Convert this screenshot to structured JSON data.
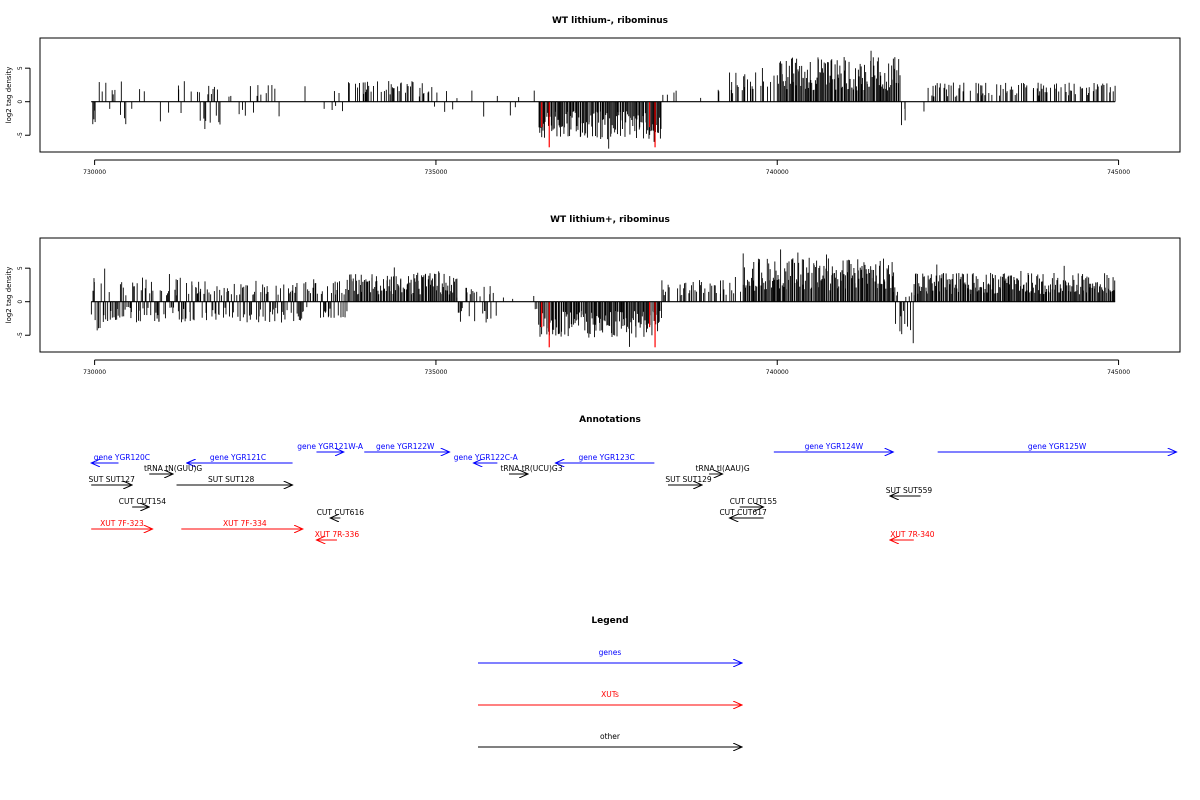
{
  "chart_data": [
    {
      "type": "bar",
      "title": "WT lithium-, ribominus",
      "ylabel": "log2 tag density",
      "xlabel": "",
      "xlim": [
        729200,
        745900
      ],
      "ylim": [
        -7.5,
        9.5
      ],
      "xticks": [
        730000,
        735000,
        740000,
        745000
      ],
      "yticks": [
        -5,
        0,
        5
      ],
      "grid": false,
      "bar_color": "#000000",
      "highlight_color": "#ff0000",
      "highlight_bars": [
        {
          "x": 736660,
          "y": -6.8
        },
        {
          "x": 738210,
          "y": -6.8
        },
        {
          "x": 736550,
          "y": -3.8
        },
        {
          "x": 738130,
          "y": -3.8
        }
      ],
      "profile": [
        {
          "from": 729950,
          "to": 730550,
          "mode": "mixed",
          "plus": 2.6,
          "minus": -2.8,
          "density": 0.35
        },
        {
          "from": 730550,
          "to": 731200,
          "mode": "mixed",
          "plus": 2.0,
          "minus": -2.5,
          "density": 0.12
        },
        {
          "from": 731200,
          "to": 732200,
          "mode": "mixed",
          "plus": 2.2,
          "minus": -3.0,
          "density": 0.35
        },
        {
          "from": 732200,
          "to": 733700,
          "mode": "mixed",
          "plus": 2.2,
          "minus": -2.0,
          "density": 0.12
        },
        {
          "from": 733700,
          "to": 734950,
          "mode": "plus",
          "plus": 2.6,
          "minus": 0,
          "density": 0.5
        },
        {
          "from": 734950,
          "to": 736500,
          "mode": "mixed",
          "plus": 1.5,
          "minus": -2.0,
          "density": 0.05
        },
        {
          "from": 736500,
          "to": 738300,
          "mode": "minus",
          "plus": 0,
          "minus": -4.6,
          "density": 1.0
        },
        {
          "from": 738300,
          "to": 739300,
          "mode": "plus",
          "plus": 1.8,
          "minus": 0,
          "density": 0.12
        },
        {
          "from": 739300,
          "to": 740000,
          "mode": "plus",
          "plus": 4.2,
          "minus": 0,
          "density": 0.4
        },
        {
          "from": 740000,
          "to": 741800,
          "mode": "plus",
          "plus": 5.6,
          "minus": 0,
          "density": 1.0
        },
        {
          "from": 741800,
          "to": 742200,
          "mode": "minus",
          "plus": 0,
          "minus": -3.0,
          "density": 0.08
        },
        {
          "from": 742200,
          "to": 744950,
          "mode": "plus",
          "plus": 2.4,
          "minus": 0,
          "density": 0.5
        }
      ]
    },
    {
      "type": "bar",
      "title": "WT lithium+, ribominus",
      "ylabel": "log2 tag density",
      "xlabel": "",
      "xlim": [
        729200,
        745900
      ],
      "ylim": [
        -7.5,
        9.5
      ],
      "xticks": [
        730000,
        735000,
        740000,
        745000
      ],
      "yticks": [
        -5,
        0,
        5
      ],
      "grid": false,
      "bar_color": "#000000",
      "highlight_color": "#ff0000",
      "highlight_bars": [
        {
          "x": 736660,
          "y": -6.8
        },
        {
          "x": 738210,
          "y": -6.8
        },
        {
          "x": 736550,
          "y": -3.8
        },
        {
          "x": 738130,
          "y": -3.8
        }
      ],
      "profile": [
        {
          "from": 729950,
          "to": 731300,
          "mode": "mixed",
          "plus": 3.0,
          "minus": -2.6,
          "density": 0.9
        },
        {
          "from": 731300,
          "to": 733700,
          "mode": "mixed",
          "plus": 2.6,
          "minus": -2.6,
          "density": 0.9
        },
        {
          "from": 733700,
          "to": 735300,
          "mode": "plus",
          "plus": 3.6,
          "minus": 0,
          "density": 1.0
        },
        {
          "from": 735300,
          "to": 735900,
          "mode": "mixed",
          "plus": 2.0,
          "minus": -3.0,
          "density": 0.6
        },
        {
          "from": 735900,
          "to": 736500,
          "mode": "mixed",
          "plus": 1.0,
          "minus": -1.5,
          "density": 0.15
        },
        {
          "from": 736500,
          "to": 738300,
          "mode": "minus",
          "plus": 1.2,
          "minus": -4.5,
          "density": 1.0
        },
        {
          "from": 738300,
          "to": 739500,
          "mode": "plus",
          "plus": 2.8,
          "minus": 0,
          "density": 0.5
        },
        {
          "from": 739500,
          "to": 741700,
          "mode": "plus",
          "plus": 5.4,
          "minus": 0,
          "density": 1.0
        },
        {
          "from": 741700,
          "to": 742000,
          "mode": "mixed",
          "plus": 2.0,
          "minus": -4.0,
          "density": 0.8
        },
        {
          "from": 742000,
          "to": 744950,
          "mode": "plus",
          "plus": 3.6,
          "minus": 0,
          "density": 1.0
        }
      ]
    },
    {
      "type": "annotation-track",
      "title": "Annotations",
      "xlim": [
        729200,
        745900
      ],
      "features": [
        {
          "label": "gene YGR120C",
          "color": "#0000ff",
          "from": 730350,
          "to": 729950,
          "row": 0,
          "label_at": 730400
        },
        {
          "label": "gene YGR121C",
          "color": "#0000ff",
          "from": 732900,
          "to": 731350,
          "row": 0,
          "label_at": 732100
        },
        {
          "label": "gene YGR121W-A",
          "color": "#0000ff",
          "from": 733250,
          "to": 733650,
          "row": -1,
          "label_at": 733450
        },
        {
          "label": "gene YGR122W",
          "color": "#0000ff",
          "from": 733950,
          "to": 735200,
          "row": -1,
          "label_at": 734550
        },
        {
          "label": "gene YGR122C-A",
          "color": "#0000ff",
          "from": 735900,
          "to": 735550,
          "row": 0,
          "label_at": 735730
        },
        {
          "label": "gene YGR123C",
          "color": "#0000ff",
          "from": 738200,
          "to": 736750,
          "row": 0,
          "label_at": 737500
        },
        {
          "label": "gene YGR124W",
          "color": "#0000ff",
          "from": 739950,
          "to": 741700,
          "row": -1,
          "label_at": 740830
        },
        {
          "label": "gene YGR125W",
          "color": "#0000ff",
          "from": 742350,
          "to": 745850,
          "row": -1,
          "label_at": 744100
        },
        {
          "label": "tRNA tN(GUU)G",
          "color": "#000000",
          "from": 730800,
          "to": 731150,
          "row": 1,
          "label_at": 731150
        },
        {
          "label": "tRNA tR(UCU)G3",
          "color": "#000000",
          "from": 736070,
          "to": 736350,
          "row": 1,
          "label_at": 736400
        },
        {
          "label": "tRNA tI(AAU)G",
          "color": "#000000",
          "from": 739000,
          "to": 739200,
          "row": 1,
          "label_at": 739200
        },
        {
          "label": "SUT SUT127",
          "color": "#000000",
          "from": 729950,
          "to": 730550,
          "row": 2,
          "label_at": 730250
        },
        {
          "label": "SUT SUT128",
          "color": "#000000",
          "from": 731200,
          "to": 732900,
          "row": 2,
          "label_at": 732000
        },
        {
          "label": "SUT SUT129",
          "color": "#000000",
          "from": 738400,
          "to": 738900,
          "row": 2,
          "label_at": 738700
        },
        {
          "label": "SUT SUT559",
          "color": "#000000",
          "from": 742100,
          "to": 741650,
          "row": 3,
          "label_at": 741930
        },
        {
          "label": "CUT CUT154",
          "color": "#000000",
          "from": 730550,
          "to": 730800,
          "row": 4,
          "label_at": 730700
        },
        {
          "label": "CUT CUT155",
          "color": "#000000",
          "from": 739450,
          "to": 739800,
          "row": 4,
          "label_at": 739650
        },
        {
          "label": "CUT CUT616",
          "color": "#000000",
          "from": 733600,
          "to": 733450,
          "row": 5,
          "label_at": 733600
        },
        {
          "label": "CUT CUT617",
          "color": "#000000",
          "from": 739800,
          "to": 739300,
          "row": 5,
          "label_at": 739500
        },
        {
          "label": "XUT 7F-323",
          "color": "#ff0000",
          "from": 729950,
          "to": 730850,
          "row": 6,
          "label_at": 730400
        },
        {
          "label": "XUT 7F-334",
          "color": "#ff0000",
          "from": 731270,
          "to": 733050,
          "row": 6,
          "label_at": 732200
        },
        {
          "label": "XUT 7R-336",
          "color": "#ff0000",
          "from": 733550,
          "to": 733250,
          "row": 7,
          "label_at": 733550
        },
        {
          "label": "XUT 7R-340",
          "color": "#ff0000",
          "from": 742000,
          "to": 741650,
          "row": 7,
          "label_at": 741980
        }
      ]
    },
    {
      "type": "legend",
      "title": "Legend",
      "entries": [
        {
          "label": "genes",
          "color": "#0000ff"
        },
        {
          "label": "XUTs",
          "color": "#ff0000"
        },
        {
          "label": "other",
          "color": "#000000"
        }
      ]
    }
  ]
}
